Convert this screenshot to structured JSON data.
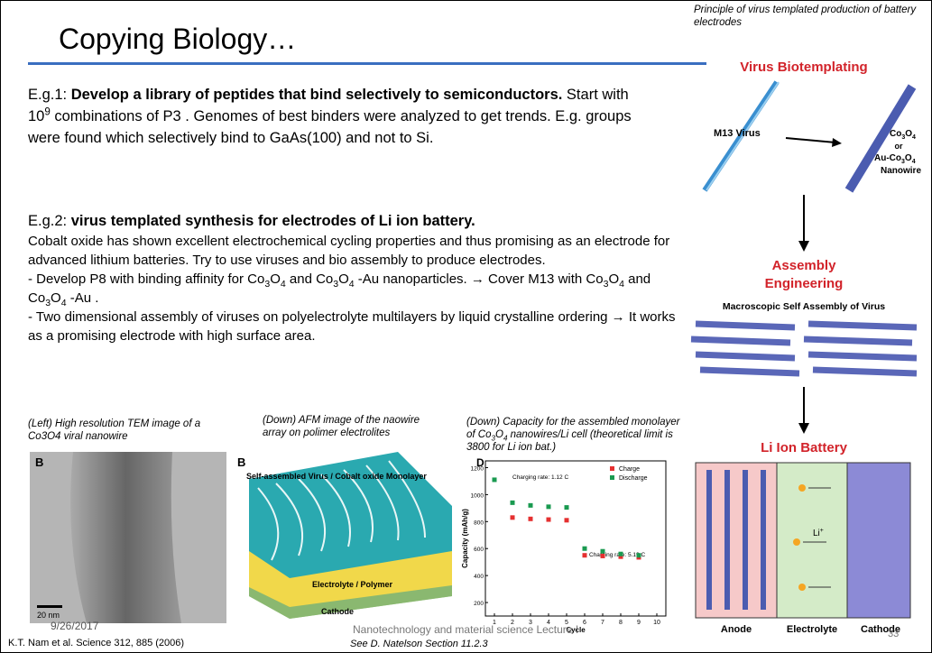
{
  "title": "Copying Biology…",
  "example1": [
    "E.g.1: ",
    "Develop a library of peptides that bind selectively to semiconductors.",
    " Start with 10",
    "9",
    " combinations of P3 . Genomes of best binders were analyzed to get trends. E.g. groups were found  which selectively bind to GaAs(100) and not to Si."
  ],
  "example2": {
    "heading": [
      "E.g.2: ",
      "virus templated synthesis for electrodes of Li ion battery."
    ],
    "paragraph": "Cobalt oxide has shown excellent electrochemical cycling properties and thus promising  as an electrode for advanced lithium batteries. Try to use viruses and bio assembly to produce electrodes.",
    "bullet1": [
      "- Develop P8 with binding affinity  for Co",
      "3",
      "O",
      "4",
      " and Co",
      "3",
      "O",
      "4",
      " -Au nanoparticles. → Cover M13 with Co",
      "3",
      "O",
      "4",
      " and Co",
      "3",
      "O",
      "4",
      " -Au ."
    ],
    "bullet2": "- Two dimensional assembly of viruses on polyelectrolyte multilayers by liquid crystalline ordering  → It works as a promising  electrode with high surface area."
  },
  "captions": {
    "tem": "(Left) High resolution TEM image of a Co3O4 viral nanowire",
    "afm": "(Down) AFM image of the naowire array on polimer electrolites",
    "capacity": [
      "(Down) Capacity for the assembled monolayer of Co",
      "3",
      "O",
      "4",
      " nanowires/Li cell (theoretical limit is 3800 for Li ion bat.)"
    ],
    "principle": "Principle of virus templated production of battery electrodes"
  },
  "tem": {
    "panel": "B",
    "scale": "20 nm"
  },
  "afm": {
    "panel": "B",
    "monolayer": "Self-assembled Virus / Cobalt oxide Monolayer",
    "electrolyte": "Electrolyte / Polymer",
    "cathode": "Cathode"
  },
  "capacity_chart": {
    "type": "scatter",
    "panel": "D",
    "xlabel": "Cycle",
    "ylabel": "Capacity (mAh/g)",
    "annotations": [
      "Charging rate: 1.12 C",
      "Charging rate: 5.19 C"
    ],
    "xlim": [
      0.5,
      10.5
    ],
    "xticks": [
      1,
      2,
      3,
      4,
      5,
      6,
      7,
      8,
      9,
      10
    ],
    "ylim": [
      100,
      1250
    ],
    "yticks": [
      200,
      400,
      600,
      800,
      1000,
      1200
    ],
    "series": [
      {
        "name": "Charge",
        "color": "#e53030",
        "x": [
          2,
          3,
          4,
          5,
          6,
          7,
          8,
          9
        ],
        "values": [
          830,
          820,
          815,
          810,
          550,
          545,
          540,
          535
        ]
      },
      {
        "name": "Discharge",
        "color": "#1a9a50",
        "x": [
          1,
          2,
          3,
          4,
          5,
          6,
          7,
          8,
          9
        ],
        "values": [
          1110,
          940,
          920,
          910,
          905,
          600,
          580,
          560,
          550
        ]
      }
    ]
  },
  "diagram": {
    "step1": "Virus Biotemplating",
    "virus": "M13 Virus",
    "product": [
      "Co",
      "3",
      "O",
      "4",
      "or",
      "Au-Co",
      "3",
      "O",
      "4",
      "Nanowire"
    ],
    "step2": [
      "Assembly",
      "Engineering"
    ],
    "assembly": "Macroscopic Self Assembly of Virus",
    "step3": "Li Ion Battery",
    "ion": [
      "Li",
      "+"
    ],
    "anode": "Anode",
    "electrolyte": "Electrolyte",
    "cathode": "Cathode"
  },
  "footer": {
    "date": "9/26/2017",
    "reference": "K.T. Nam et al. Science 312, 885 (2006)",
    "center": "Nanotechnology and material science Lecture I",
    "see": "See D. Natelson Section  11.2.3",
    "page": "33"
  }
}
